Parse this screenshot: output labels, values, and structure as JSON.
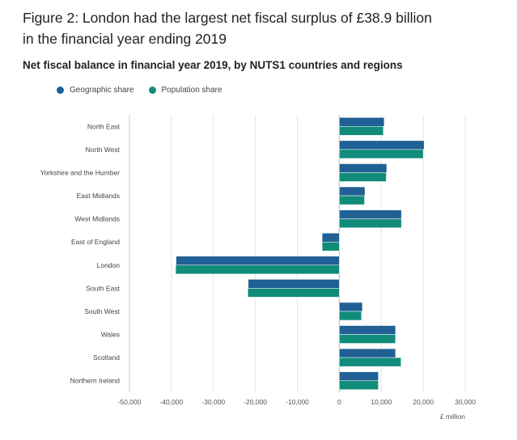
{
  "title_line1": "Figure 2: London had the largest net fiscal surplus of £38.9 billion",
  "title_line2": "in the financial year ending 2019",
  "chart_data": {
    "type": "bar",
    "orientation": "horizontal",
    "title": "Net fiscal balance in financial year 2019, by NUTS1 countries and regions",
    "xlabel": "£ million",
    "ylabel": "",
    "xlim": [
      -50000,
      30000
    ],
    "xticks": [
      -50000,
      -40000,
      -30000,
      -20000,
      -10000,
      0,
      10000,
      20000,
      30000
    ],
    "xtick_labels": [
      "-50,000",
      "-40,000",
      "-30,000",
      "-20,000",
      "-10,000",
      "0",
      "10,000",
      "20,000",
      "30,000"
    ],
    "categories": [
      "North East",
      "North West",
      "Yorkshire and the Humber",
      "East Midlands",
      "West Midlands",
      "East of England",
      "London",
      "South East",
      "South West",
      "Wales",
      "Scotland",
      "Northern Ireland"
    ],
    "series": [
      {
        "name": "Geographic share",
        "color": "#206095",
        "values": [
          10700,
          20200,
          11300,
          6100,
          14800,
          -4100,
          -38900,
          -21700,
          5500,
          13400,
          13400,
          9300
        ]
      },
      {
        "name": "Population share",
        "color": "#118c7b",
        "values": [
          10500,
          20000,
          11200,
          6000,
          14800,
          -4100,
          -39000,
          -21800,
          5300,
          13400,
          14700,
          9300
        ]
      }
    ],
    "legend_position": "top-left",
    "grid": true
  }
}
